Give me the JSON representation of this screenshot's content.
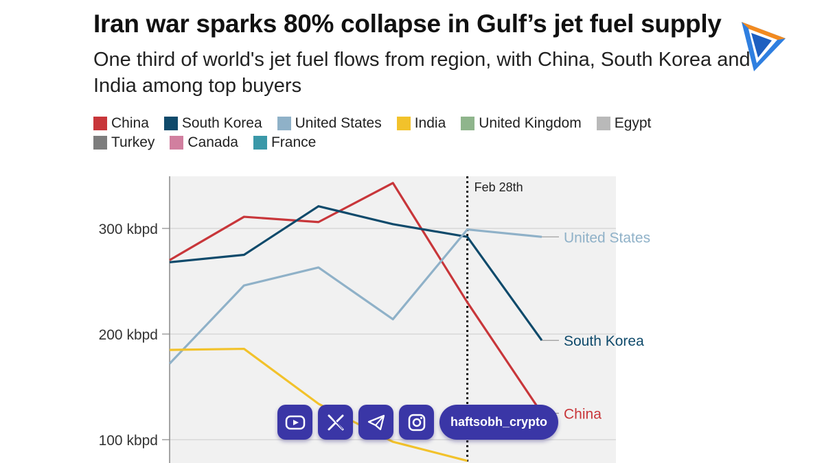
{
  "header": {
    "title": "Iran war sparks 80% collapse in Gulf’s jet fuel supply",
    "subtitle": "One third of world's jet fuel flows from region, with China, South Korea and India among top buyers"
  },
  "legend": [
    {
      "label": "China",
      "color": "#c8363a"
    },
    {
      "label": "South Korea",
      "color": "#0f4a6b"
    },
    {
      "label": "United States",
      "color": "#8fb1c8"
    },
    {
      "label": "India",
      "color": "#f2c22b"
    },
    {
      "label": "United Kingdom",
      "color": "#8fb58c"
    },
    {
      "label": "Egypt",
      "color": "#b9b9b9"
    },
    {
      "label": "Turkey",
      "color": "#7d7d7d"
    },
    {
      "label": "Canada",
      "color": "#d17f9f"
    },
    {
      "label": "France",
      "color": "#3a98a8"
    }
  ],
  "chart_data": {
    "type": "line",
    "x": [
      0,
      1,
      2,
      3,
      4,
      5
    ],
    "ylim": [
      75,
      350
    ],
    "yticks": [
      100,
      200,
      300
    ],
    "ytick_labels": [
      "100 kbpd",
      "200 kbpd",
      "300 kbpd"
    ],
    "grid": true,
    "annotation": {
      "label": "Feb 28th",
      "x": 4
    },
    "series": [
      {
        "name": "China",
        "color": "#c8363a",
        "values": [
          270,
          311,
          306,
          343,
          230,
          125
        ],
        "end_label": "China"
      },
      {
        "name": "South Korea",
        "color": "#0f4a6b",
        "values": [
          268,
          275,
          321,
          304,
          292,
          194
        ],
        "end_label": "South Korea"
      },
      {
        "name": "United States",
        "color": "#8fb1c8",
        "values": [
          172,
          246,
          263,
          214,
          299,
          292
        ],
        "end_label": "United States"
      },
      {
        "name": "India",
        "color": "#f2c22b",
        "values": [
          185,
          186,
          134,
          98,
          80,
          null
        ],
        "end_label": ""
      }
    ]
  },
  "overlay": {
    "icons": [
      "youtube-icon",
      "x-icon",
      "telegram-icon",
      "instagram-icon"
    ],
    "handle": "haftsobh_crypto"
  }
}
